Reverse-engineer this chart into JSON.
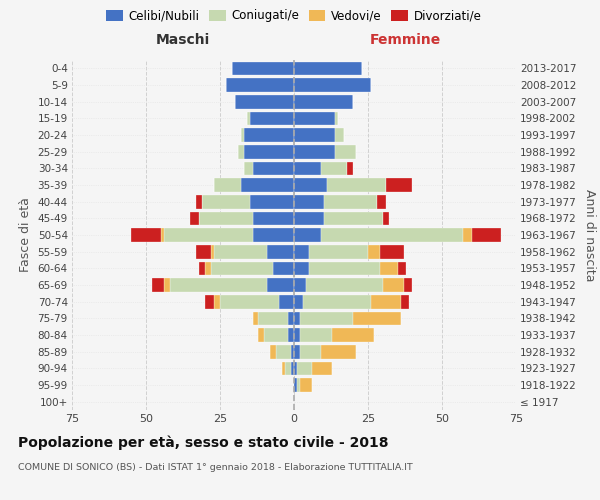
{
  "age_groups": [
    "100+",
    "95-99",
    "90-94",
    "85-89",
    "80-84",
    "75-79",
    "70-74",
    "65-69",
    "60-64",
    "55-59",
    "50-54",
    "45-49",
    "40-44",
    "35-39",
    "30-34",
    "25-29",
    "20-24",
    "15-19",
    "10-14",
    "5-9",
    "0-4"
  ],
  "birth_years": [
    "≤ 1917",
    "1918-1922",
    "1923-1927",
    "1928-1932",
    "1933-1937",
    "1938-1942",
    "1943-1947",
    "1948-1952",
    "1953-1957",
    "1958-1962",
    "1963-1967",
    "1968-1972",
    "1973-1977",
    "1978-1982",
    "1983-1987",
    "1988-1992",
    "1993-1997",
    "1998-2002",
    "2003-2007",
    "2008-2012",
    "2013-2017"
  ],
  "colors": {
    "celibe": "#4472c4",
    "coniugato": "#c6d9b0",
    "vedovo": "#f0b856",
    "divorziato": "#cc2020"
  },
  "maschi": {
    "celibe": [
      0,
      0,
      1,
      1,
      2,
      2,
      5,
      9,
      7,
      9,
      14,
      14,
      15,
      18,
      14,
      17,
      17,
      15,
      20,
      23,
      21
    ],
    "coniugato": [
      0,
      0,
      2,
      5,
      8,
      10,
      20,
      33,
      21,
      18,
      30,
      18,
      16,
      9,
      3,
      2,
      1,
      1,
      0,
      0,
      0
    ],
    "vedovo": [
      0,
      0,
      1,
      2,
      2,
      2,
      2,
      2,
      2,
      1,
      1,
      0,
      0,
      0,
      0,
      0,
      0,
      0,
      0,
      0,
      0
    ],
    "divorziato": [
      0,
      0,
      0,
      0,
      0,
      0,
      3,
      4,
      2,
      5,
      10,
      3,
      2,
      0,
      0,
      0,
      0,
      0,
      0,
      0,
      0
    ]
  },
  "femmine": {
    "nubile": [
      0,
      1,
      1,
      2,
      2,
      2,
      3,
      4,
      5,
      5,
      9,
      10,
      10,
      11,
      9,
      14,
      14,
      14,
      20,
      26,
      23
    ],
    "coniugata": [
      0,
      1,
      5,
      7,
      11,
      18,
      23,
      26,
      24,
      20,
      48,
      20,
      18,
      20,
      9,
      7,
      3,
      1,
      0,
      0,
      0
    ],
    "vedova": [
      0,
      4,
      7,
      12,
      14,
      16,
      10,
      7,
      6,
      4,
      3,
      0,
      0,
      0,
      0,
      0,
      0,
      0,
      0,
      0,
      0
    ],
    "divorziata": [
      0,
      0,
      0,
      0,
      0,
      0,
      3,
      3,
      3,
      8,
      10,
      2,
      3,
      9,
      2,
      0,
      0,
      0,
      0,
      0,
      0
    ]
  },
  "xlim": 75,
  "title": "Popolazione per età, sesso e stato civile - 2018",
  "subtitle": "COMUNE DI SONICO (BS) - Dati ISTAT 1° gennaio 2018 - Elaborazione TUTTITALIA.IT",
  "ylabel_left": "Fasce di età",
  "ylabel_right": "Anni di nascita",
  "xlabel_maschi": "Maschi",
  "xlabel_femmine": "Femmine",
  "bg_color": "#f5f5f5",
  "grid_color": "#cccccc",
  "legend_labels": [
    "Celibi/Nubili",
    "Coniugati/e",
    "Vedovi/e",
    "Divorziati/e"
  ]
}
